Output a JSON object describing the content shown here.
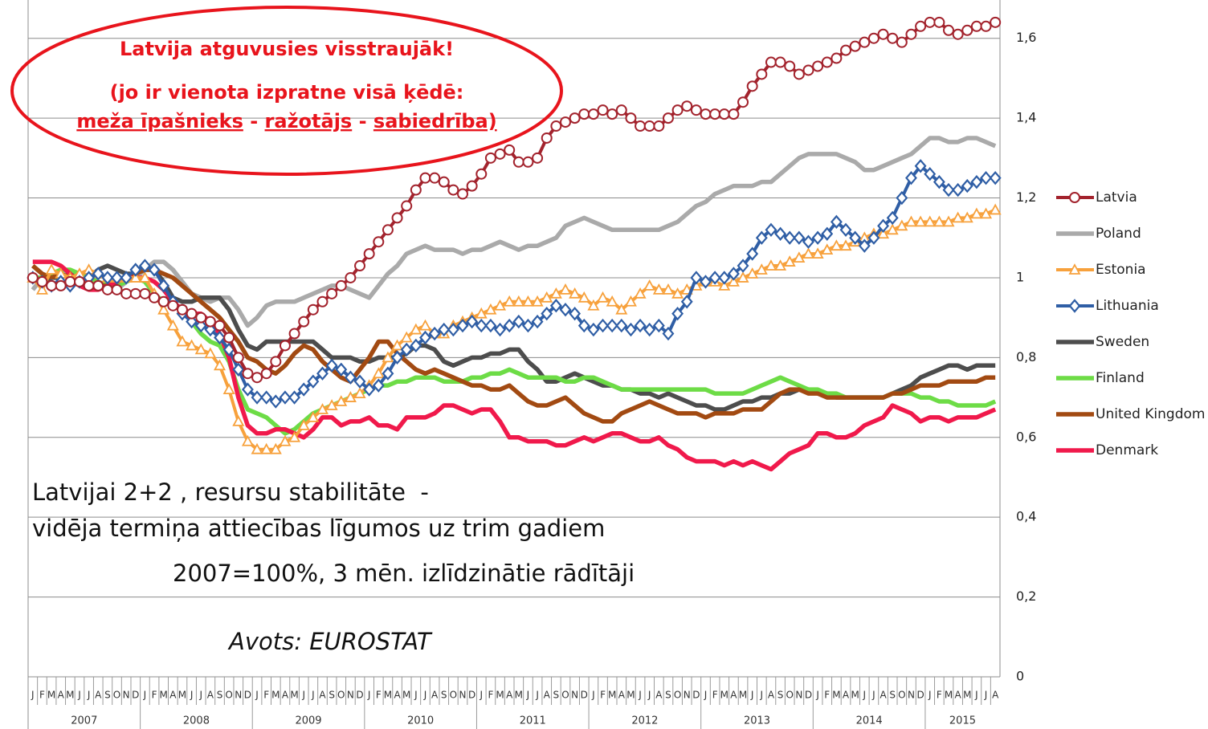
{
  "chart_data": {
    "type": "line",
    "annotations": {
      "headline": "Latvija atguvusies visstraujāk!",
      "subline": "(jo ir vienota izpratne visā ķēdē:",
      "chain": [
        "meža īpašnieks",
        "ražotājs",
        "sabiedrība)"
      ],
      "separator": "-",
      "note1": "Latvijai 2+2 , resursu stabilitāte  -",
      "note2": "vidēja termiņa attiecības līgumos uz trim gadiem",
      "note3": "2007=100%, 3 mēn. izlīdzinātie rādītāji",
      "source": "Avots: EUROSTAT"
    },
    "categories": [
      "J",
      "F",
      "M",
      "A",
      "M",
      "J",
      "J",
      "A",
      "S",
      "O",
      "N",
      "D",
      "J",
      "F",
      "M",
      "A",
      "M",
      "J",
      "J",
      "A",
      "S",
      "O",
      "N",
      "D",
      "J",
      "F",
      "M",
      "A",
      "M",
      "J",
      "J",
      "A",
      "S",
      "O",
      "N",
      "D",
      "J",
      "F",
      "M",
      "A",
      "M",
      "J",
      "J",
      "A",
      "S",
      "O",
      "N",
      "D",
      "J",
      "F",
      "M",
      "A",
      "M",
      "J",
      "J",
      "A",
      "S",
      "O",
      "N",
      "D",
      "J",
      "F",
      "M",
      "A",
      "M",
      "J",
      "J",
      "A",
      "S",
      "O",
      "N",
      "D",
      "J",
      "F",
      "M",
      "A",
      "M",
      "J",
      "J",
      "A",
      "S",
      "O",
      "N",
      "D",
      "J",
      "F",
      "M",
      "A",
      "M",
      "J",
      "J",
      "A",
      "S",
      "O",
      "N",
      "D",
      "J",
      "F",
      "M",
      "A",
      "M",
      "J",
      "J",
      "A"
    ],
    "years": [
      "2007",
      "2008",
      "2009",
      "2010",
      "2011",
      "2012",
      "2013",
      "2014",
      "2015"
    ],
    "ylim": [
      0,
      1.7
    ],
    "yticks": [
      0,
      {
        "value": 0.2,
        "label": "0,2"
      },
      {
        "value": 0.4,
        "label": "0,4"
      },
      {
        "value": 0.6,
        "label": "0,6"
      },
      {
        "value": 0.8,
        "label": "0,8"
      },
      1,
      {
        "value": 1.2,
        "label": "1,2"
      },
      {
        "value": 1.4,
        "label": "1,4"
      },
      {
        "value": 1.6,
        "label": "1,6"
      }
    ],
    "grid": true,
    "legend": "right",
    "series": [
      {
        "name": "Latvia",
        "color": "#a3232d",
        "marker": "circle",
        "values": [
          1.0,
          0.99,
          0.98,
          0.98,
          0.99,
          0.99,
          0.98,
          0.98,
          0.97,
          0.97,
          0.96,
          0.96,
          0.96,
          0.95,
          0.94,
          0.93,
          0.92,
          0.91,
          0.9,
          0.89,
          0.88,
          0.85,
          0.8,
          0.76,
          0.75,
          0.76,
          0.79,
          0.83,
          0.86,
          0.89,
          0.92,
          0.94,
          0.96,
          0.98,
          1.0,
          1.03,
          1.06,
          1.09,
          1.12,
          1.15,
          1.18,
          1.22,
          1.25,
          1.25,
          1.24,
          1.22,
          1.21,
          1.23,
          1.26,
          1.3,
          1.31,
          1.32,
          1.29,
          1.29,
          1.3,
          1.35,
          1.38,
          1.39,
          1.4,
          1.41,
          1.41,
          1.42,
          1.41,
          1.42,
          1.4,
          1.38,
          1.38,
          1.38,
          1.4,
          1.42,
          1.43,
          1.42,
          1.41,
          1.41,
          1.41,
          1.41,
          1.44,
          1.48,
          1.51,
          1.54,
          1.54,
          1.53,
          1.51,
          1.52,
          1.53,
          1.54,
          1.55,
          1.57,
          1.58,
          1.59,
          1.6,
          1.61,
          1.6,
          1.59,
          1.61,
          1.63,
          1.64,
          1.64,
          1.62,
          1.61,
          1.62,
          1.63,
          1.63,
          1.64
        ]
      },
      {
        "name": "Poland",
        "color": "#aaaaaa",
        "values": [
          0.97,
          1.0,
          1.0,
          1.01,
          1.01,
          1.0,
          0.99,
          0.98,
          0.98,
          0.97,
          0.99,
          1.0,
          1.02,
          1.04,
          1.04,
          1.02,
          0.99,
          0.96,
          0.95,
          0.94,
          0.95,
          0.95,
          0.92,
          0.88,
          0.9,
          0.93,
          0.94,
          0.94,
          0.94,
          0.95,
          0.96,
          0.97,
          0.98,
          0.98,
          0.97,
          0.96,
          0.95,
          0.98,
          1.01,
          1.03,
          1.06,
          1.07,
          1.08,
          1.07,
          1.07,
          1.07,
          1.06,
          1.07,
          1.07,
          1.08,
          1.09,
          1.08,
          1.07,
          1.08,
          1.08,
          1.09,
          1.1,
          1.13,
          1.14,
          1.15,
          1.14,
          1.13,
          1.12,
          1.12,
          1.12,
          1.12,
          1.12,
          1.12,
          1.13,
          1.14,
          1.16,
          1.18,
          1.19,
          1.21,
          1.22,
          1.23,
          1.23,
          1.23,
          1.24,
          1.24,
          1.26,
          1.28,
          1.3,
          1.31,
          1.31,
          1.31,
          1.31,
          1.3,
          1.29,
          1.27,
          1.27,
          1.28,
          1.29,
          1.3,
          1.31,
          1.33,
          1.35,
          1.35,
          1.34,
          1.34,
          1.35,
          1.35,
          1.34,
          1.33
        ]
      },
      {
        "name": "Estonia",
        "color": "#f7a13c",
        "marker": "triangle",
        "values": [
          1.0,
          0.97,
          1.02,
          1.01,
          1.0,
          1.01,
          1.02,
          1.01,
          1.0,
          1.0,
          1.0,
          1.0,
          1.0,
          0.96,
          0.92,
          0.88,
          0.84,
          0.83,
          0.82,
          0.81,
          0.78,
          0.72,
          0.64,
          0.59,
          0.57,
          0.57,
          0.57,
          0.59,
          0.6,
          0.63,
          0.65,
          0.67,
          0.68,
          0.69,
          0.7,
          0.71,
          0.73,
          0.76,
          0.8,
          0.83,
          0.85,
          0.87,
          0.88,
          0.86,
          0.86,
          0.88,
          0.89,
          0.9,
          0.91,
          0.92,
          0.93,
          0.94,
          0.94,
          0.94,
          0.94,
          0.95,
          0.96,
          0.97,
          0.96,
          0.95,
          0.93,
          0.95,
          0.94,
          0.92,
          0.94,
          0.96,
          0.98,
          0.97,
          0.97,
          0.96,
          0.97,
          0.98,
          0.99,
          0.99,
          0.98,
          0.99,
          1.0,
          1.01,
          1.02,
          1.03,
          1.03,
          1.04,
          1.05,
          1.06,
          1.06,
          1.07,
          1.08,
          1.08,
          1.09,
          1.1,
          1.11,
          1.11,
          1.12,
          1.13,
          1.14,
          1.14,
          1.14,
          1.14,
          1.14,
          1.15,
          1.15,
          1.16,
          1.16,
          1.17
        ]
      },
      {
        "name": "Lithuania",
        "color": "#2f5ea5",
        "marker": "diamond",
        "values": [
          1.0,
          0.99,
          0.98,
          0.99,
          0.98,
          0.99,
          1.0,
          1.01,
          1.0,
          1.0,
          1.0,
          1.02,
          1.03,
          1.02,
          0.98,
          0.94,
          0.91,
          0.89,
          0.88,
          0.87,
          0.85,
          0.82,
          0.77,
          0.72,
          0.7,
          0.7,
          0.69,
          0.7,
          0.7,
          0.72,
          0.74,
          0.76,
          0.78,
          0.77,
          0.75,
          0.74,
          0.72,
          0.73,
          0.76,
          0.8,
          0.82,
          0.83,
          0.85,
          0.86,
          0.87,
          0.87,
          0.88,
          0.89,
          0.88,
          0.88,
          0.87,
          0.88,
          0.89,
          0.88,
          0.89,
          0.91,
          0.93,
          0.92,
          0.91,
          0.88,
          0.87,
          0.88,
          0.88,
          0.88,
          0.87,
          0.88,
          0.87,
          0.88,
          0.86,
          0.91,
          0.94,
          1.0,
          0.99,
          1.0,
          1.0,
          1.01,
          1.03,
          1.06,
          1.1,
          1.12,
          1.11,
          1.1,
          1.1,
          1.09,
          1.1,
          1.11,
          1.14,
          1.12,
          1.1,
          1.08,
          1.1,
          1.13,
          1.15,
          1.2,
          1.25,
          1.28,
          1.26,
          1.24,
          1.22,
          1.22,
          1.23,
          1.24,
          1.25,
          1.25
        ]
      },
      {
        "name": "Sweden",
        "color": "#4d4d4d",
        "values": [
          1.0,
          0.98,
          1.0,
          1.0,
          1.01,
          1.01,
          1.0,
          1.02,
          1.03,
          1.02,
          1.01,
          1.01,
          1.02,
          1.02,
          0.99,
          0.95,
          0.94,
          0.94,
          0.95,
          0.95,
          0.95,
          0.92,
          0.87,
          0.83,
          0.82,
          0.84,
          0.84,
          0.84,
          0.84,
          0.84,
          0.84,
          0.82,
          0.8,
          0.8,
          0.8,
          0.79,
          0.79,
          0.8,
          0.8,
          0.8,
          0.81,
          0.83,
          0.83,
          0.82,
          0.79,
          0.78,
          0.79,
          0.8,
          0.8,
          0.81,
          0.81,
          0.82,
          0.82,
          0.79,
          0.77,
          0.74,
          0.74,
          0.75,
          0.76,
          0.75,
          0.74,
          0.73,
          0.73,
          0.72,
          0.72,
          0.71,
          0.71,
          0.7,
          0.71,
          0.7,
          0.69,
          0.68,
          0.68,
          0.67,
          0.67,
          0.68,
          0.69,
          0.69,
          0.7,
          0.7,
          0.71,
          0.71,
          0.72,
          0.72,
          0.71,
          0.71,
          0.7,
          0.7,
          0.7,
          0.7,
          0.7,
          0.7,
          0.71,
          0.72,
          0.73,
          0.75,
          0.76,
          0.77,
          0.78,
          0.78,
          0.77,
          0.78,
          0.78,
          0.78
        ]
      },
      {
        "name": "Finland",
        "color": "#6ddc46",
        "values": [
          1.0,
          1.0,
          1.01,
          1.02,
          1.02,
          1.01,
          1.0,
          0.99,
          0.98,
          0.98,
          0.99,
          1.0,
          0.99,
          0.96,
          0.94,
          0.93,
          0.92,
          0.89,
          0.86,
          0.84,
          0.83,
          0.79,
          0.72,
          0.67,
          0.66,
          0.65,
          0.63,
          0.61,
          0.62,
          0.64,
          0.66,
          0.67,
          0.68,
          0.69,
          0.7,
          0.71,
          0.72,
          0.73,
          0.73,
          0.74,
          0.74,
          0.75,
          0.75,
          0.75,
          0.74,
          0.74,
          0.74,
          0.75,
          0.75,
          0.76,
          0.76,
          0.77,
          0.76,
          0.75,
          0.75,
          0.75,
          0.75,
          0.74,
          0.74,
          0.75,
          0.75,
          0.74,
          0.73,
          0.72,
          0.72,
          0.72,
          0.72,
          0.72,
          0.72,
          0.72,
          0.72,
          0.72,
          0.72,
          0.71,
          0.71,
          0.71,
          0.71,
          0.72,
          0.73,
          0.74,
          0.75,
          0.74,
          0.73,
          0.72,
          0.72,
          0.71,
          0.71,
          0.7,
          0.7,
          0.7,
          0.7,
          0.7,
          0.71,
          0.71,
          0.71,
          0.7,
          0.7,
          0.69,
          0.69,
          0.68,
          0.68,
          0.68,
          0.68,
          0.69
        ]
      },
      {
        "name": "United Kingdom",
        "color": "#a24a12",
        "values": [
          1.03,
          1.01,
          1.0,
          1.01,
          1.0,
          0.99,
          0.98,
          0.98,
          0.98,
          0.99,
          1.0,
          1.01,
          1.02,
          1.02,
          1.01,
          1.0,
          0.98,
          0.96,
          0.94,
          0.92,
          0.9,
          0.87,
          0.84,
          0.8,
          0.79,
          0.77,
          0.76,
          0.78,
          0.81,
          0.83,
          0.82,
          0.79,
          0.77,
          0.75,
          0.74,
          0.77,
          0.8,
          0.84,
          0.84,
          0.81,
          0.79,
          0.77,
          0.76,
          0.77,
          0.76,
          0.75,
          0.74,
          0.73,
          0.73,
          0.72,
          0.72,
          0.73,
          0.71,
          0.69,
          0.68,
          0.68,
          0.69,
          0.7,
          0.68,
          0.66,
          0.65,
          0.64,
          0.64,
          0.66,
          0.67,
          0.68,
          0.69,
          0.68,
          0.67,
          0.66,
          0.66,
          0.66,
          0.65,
          0.66,
          0.66,
          0.66,
          0.67,
          0.67,
          0.67,
          0.69,
          0.71,
          0.72,
          0.72,
          0.71,
          0.71,
          0.7,
          0.7,
          0.7,
          0.7,
          0.7,
          0.7,
          0.7,
          0.71,
          0.71,
          0.72,
          0.73,
          0.73,
          0.73,
          0.74,
          0.74,
          0.74,
          0.74,
          0.75,
          0.75
        ]
      },
      {
        "name": "Denmark",
        "color": "#f0194b",
        "values": [
          1.04,
          1.04,
          1.04,
          1.03,
          1.01,
          0.98,
          0.97,
          0.97,
          0.98,
          0.99,
          1.0,
          1.0,
          1.0,
          0.99,
          0.97,
          0.94,
          0.92,
          0.91,
          0.91,
          0.89,
          0.86,
          0.8,
          0.7,
          0.63,
          0.61,
          0.61,
          0.62,
          0.62,
          0.61,
          0.6,
          0.62,
          0.65,
          0.65,
          0.63,
          0.64,
          0.64,
          0.65,
          0.63,
          0.63,
          0.62,
          0.65,
          0.65,
          0.65,
          0.66,
          0.68,
          0.68,
          0.67,
          0.66,
          0.67,
          0.67,
          0.64,
          0.6,
          0.6,
          0.59,
          0.59,
          0.59,
          0.58,
          0.58,
          0.59,
          0.6,
          0.59,
          0.6,
          0.61,
          0.61,
          0.6,
          0.59,
          0.59,
          0.6,
          0.58,
          0.57,
          0.55,
          0.54,
          0.54,
          0.54,
          0.53,
          0.54,
          0.53,
          0.54,
          0.53,
          0.52,
          0.54,
          0.56,
          0.57,
          0.58,
          0.61,
          0.61,
          0.6,
          0.6,
          0.61,
          0.63,
          0.64,
          0.65,
          0.68,
          0.67,
          0.66,
          0.64,
          0.65,
          0.65,
          0.64,
          0.65,
          0.65,
          0.65,
          0.66,
          0.67
        ]
      }
    ]
  }
}
